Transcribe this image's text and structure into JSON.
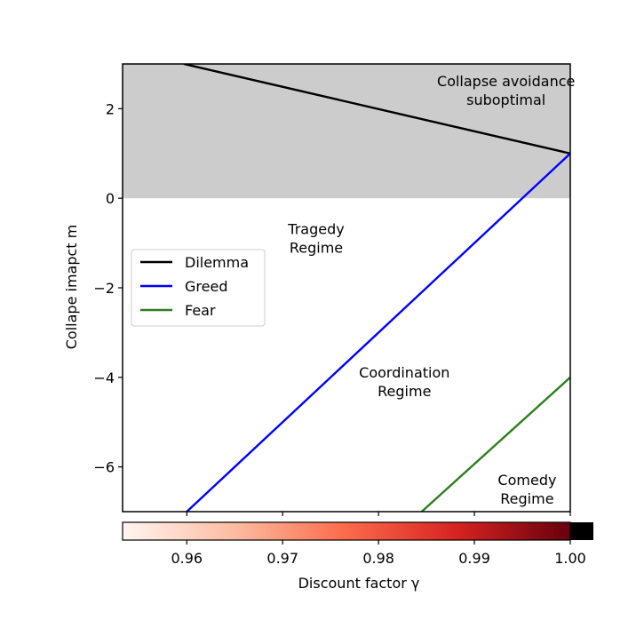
{
  "chart_data": {
    "type": "line",
    "xlim": [
      0.9533,
      1.0
    ],
    "ylim": [
      -7,
      3
    ],
    "ylabel": "Collape imapct m",
    "colorbar_label": "Discount factor γ",
    "colorbar_range": [
      0.9533,
      1.0
    ],
    "colorbar_ticks": [
      0.96,
      0.97,
      0.98,
      0.99,
      1.0
    ],
    "colorbar_tick_labels": [
      "0.96",
      "0.97",
      "0.98",
      "0.99",
      "1.00"
    ],
    "y_ticks": [
      2,
      0,
      -2,
      -4,
      -6
    ],
    "y_tick_labels": [
      "2",
      "0",
      "−2",
      "−4",
      "−6"
    ],
    "x_ticks": [
      0.96,
      0.97,
      0.98,
      0.99,
      1.0
    ],
    "shaded_region": {
      "ymin": 0,
      "ymax": 3,
      "color": "#cccccc"
    },
    "series": [
      {
        "name": "Dilemma",
        "color": "#000000",
        "x": [
          0.9597,
          1.0
        ],
        "y": [
          3.0,
          1.0
        ]
      },
      {
        "name": "Greed",
        "color": "#0000ff",
        "x": [
          0.96,
          1.0
        ],
        "y": [
          -7.0,
          1.0
        ]
      },
      {
        "name": "Fear",
        "color": "#2e7d1f",
        "x": [
          0.9845,
          1.0
        ],
        "y": [
          -7.0,
          -4.0
        ]
      }
    ],
    "annotations": [
      {
        "lines": [
          "Collapse avoidance",
          "suboptimal"
        ],
        "x": 0.9933,
        "y": 2.5,
        "anchor": "end"
      },
      {
        "lines": [
          "Tragedy",
          "Regime"
        ],
        "x": 0.9735,
        "y": -0.8,
        "anchor": "middle"
      },
      {
        "lines": [
          "Coordination",
          "Regime"
        ],
        "x": 0.9827,
        "y": -4.0,
        "anchor": "middle"
      },
      {
        "lines": [
          "Comedy",
          "Regime"
        ],
        "x": 0.9955,
        "y": -6.4,
        "anchor": "middle"
      }
    ],
    "legend_position": "center-left"
  }
}
